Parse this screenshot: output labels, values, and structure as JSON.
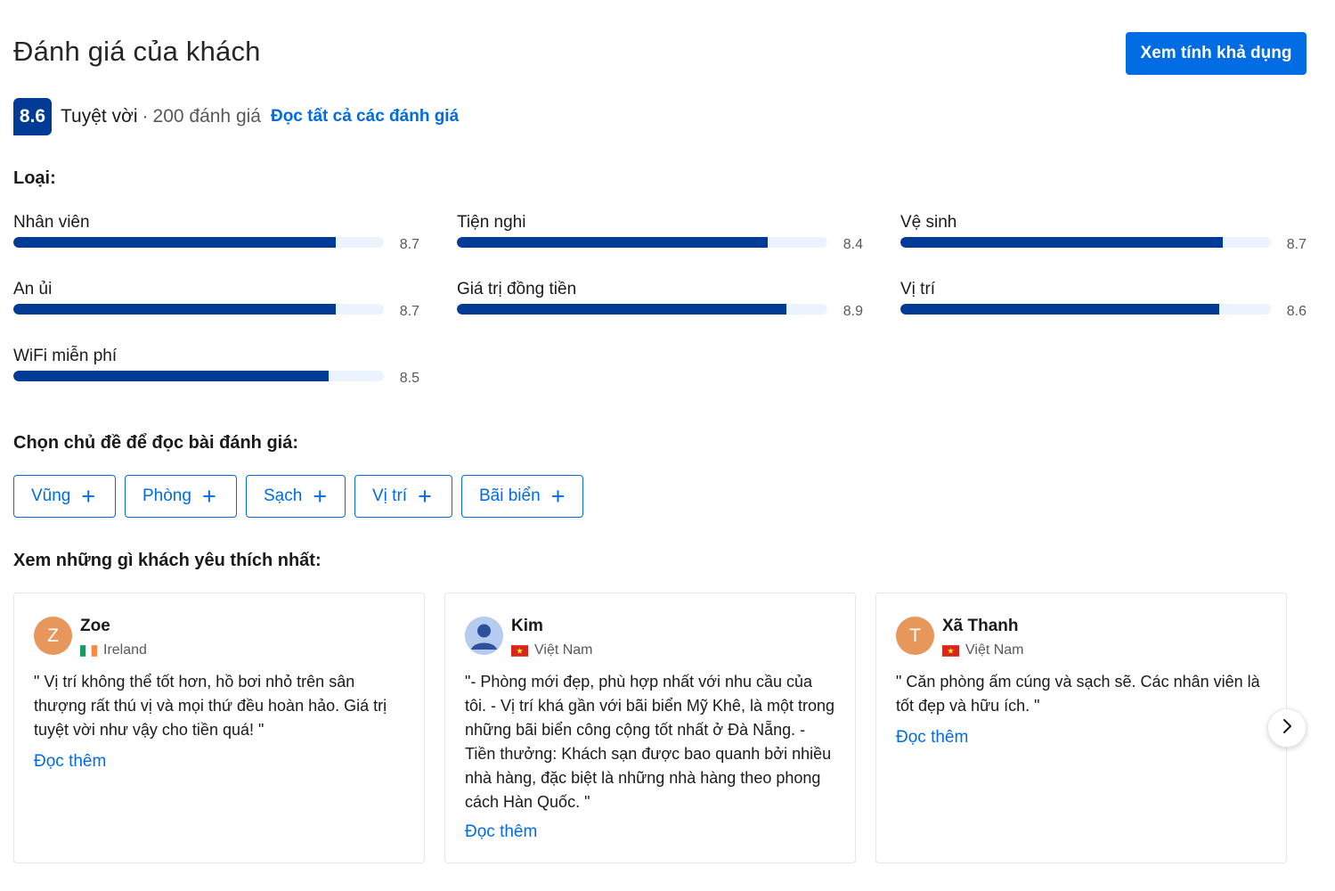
{
  "header": {
    "title": "Đánh giá của khách",
    "availability_button": "Xem tính khả dụng"
  },
  "score": {
    "value": "8.6",
    "word": "Tuyệt vời",
    "separator": "·",
    "count": "200 đánh giá",
    "read_all": "Đọc tất cả các đánh giá"
  },
  "categories": {
    "heading": "Loại:",
    "items": [
      {
        "label": "Nhân viên",
        "value": "8.7",
        "score": 8.7
      },
      {
        "label": "Tiện nghi",
        "value": "8.4",
        "score": 8.4
      },
      {
        "label": "Vệ sinh",
        "value": "8.7",
        "score": 8.7
      },
      {
        "label": "An ủi",
        "value": "8.7",
        "score": 8.7
      },
      {
        "label": "Giá trị đồng tiền",
        "value": "8.9",
        "score": 8.9
      },
      {
        "label": "Vị trí",
        "value": "8.6",
        "score": 8.6
      },
      {
        "label": "WiFi miễn phí",
        "value": "8.5",
        "score": 8.5
      }
    ]
  },
  "topics": {
    "heading": "Chọn chủ đề để đọc bài đánh giá:",
    "items": [
      "Vũng",
      "Phòng",
      "Sạch",
      "Vị trí",
      "Bãi biển"
    ],
    "plus": "+"
  },
  "reviews": {
    "heading": "Xem những gì khách yêu thích nhất:",
    "items": [
      {
        "initial": "Z",
        "name": "Zoe",
        "country": "Ireland",
        "text": "\" Vị trí không thể tốt hơn, hồ bơi nhỏ trên sân thượng rất thú vị và mọi thứ đều hoàn hảo. Giá trị tuyệt vời như vậy cho tiền quá! \"",
        "read_more": "Đọc thêm"
      },
      {
        "initial": "",
        "name": "Kim",
        "country": "Việt Nam",
        "text": "\"- Phòng mới đẹp, phù hợp nhất với nhu cầu của tôi. - Vị trí khá gần với bãi biển Mỹ Khê, là một trong những bãi biển công cộng tốt nhất ở Đà Nẵng. - Tiền thưởng: Khách sạn được bao quanh bởi nhiều nhà hàng, đặc biệt là những nhà hàng theo phong cách Hàn Quốc. \"",
        "read_more": "Đọc thêm"
      },
      {
        "initial": "T",
        "name": "Xã Thanh",
        "country": "Việt Nam",
        "text": "\" Căn phòng ấm cúng và sạch sẽ. Các nhân viên là tốt đẹp và hữu ích. \"",
        "read_more": "Đọc thêm"
      }
    ]
  },
  "colors": {
    "primary": "#006ce4",
    "score_dark": "#003b95",
    "track": "#ebf3ff",
    "avatar_orange": "#e8975c"
  }
}
